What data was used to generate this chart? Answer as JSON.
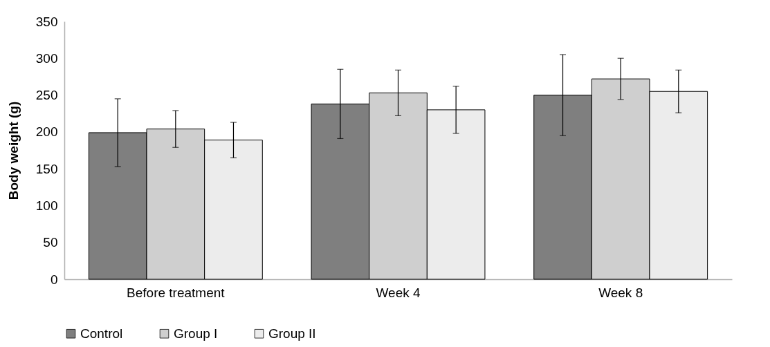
{
  "chart_data": {
    "type": "bar",
    "ylabel": "Body weight (g)",
    "categories": [
      "Before treatment",
      "Week 4",
      "Week 8"
    ],
    "series": [
      {
        "name": "Control",
        "color": "#7f7f7f",
        "values": [
          199,
          238,
          250
        ],
        "errors": [
          46,
          47,
          55
        ]
      },
      {
        "name": "Group I",
        "color": "#cfcfcf",
        "values": [
          204,
          253,
          272
        ],
        "errors": [
          25,
          31,
          28
        ]
      },
      {
        "name": "Group II",
        "color": "#ececec",
        "values": [
          189,
          230,
          255
        ],
        "errors": [
          24,
          32,
          29
        ]
      }
    ],
    "ylim": [
      0,
      350
    ],
    "yticks": [
      0,
      50,
      100,
      150,
      200,
      250,
      300,
      350
    ],
    "grid": false,
    "legend": "bottom"
  }
}
